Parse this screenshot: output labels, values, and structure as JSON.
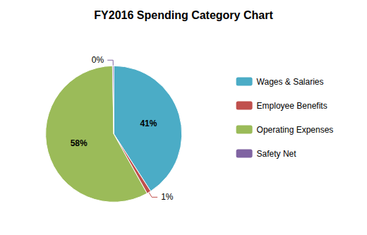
{
  "chart_data": {
    "type": "pie",
    "title": "FY2016 Spending Category Chart",
    "categories": [
      "Wages & Salaries",
      "Employee Benefits",
      "Operating Expenses",
      "Safety Net"
    ],
    "values": [
      41,
      1,
      58,
      0.3
    ],
    "value_labels": [
      "41%",
      "1%",
      "58%",
      "0%"
    ],
    "colors": [
      "#4bacc6",
      "#c0504d",
      "#9bbb59",
      "#8064a2"
    ],
    "data_labels": true,
    "legend": "right"
  }
}
